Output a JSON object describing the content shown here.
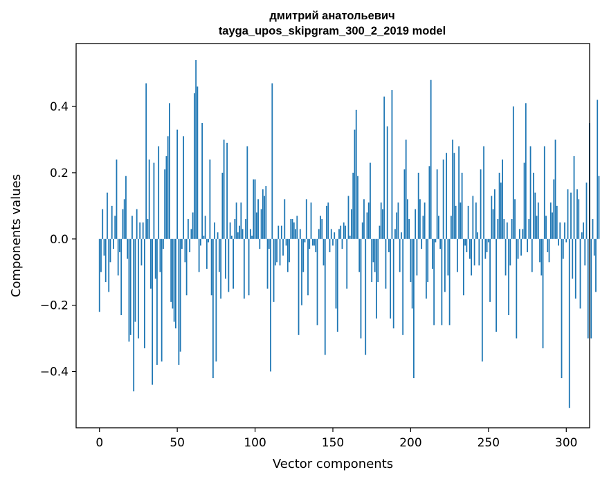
{
  "chart_data": {
    "type": "bar",
    "title": "дмитрий анатольевич\ntayga_upos_skipgram_300_2_2019 model",
    "title_lines": [
      "дмитрий анатольевич",
      "tayga_upos_skipgram_300_2_2019 model"
    ],
    "xlabel": "Vector components",
    "ylabel": "Components values",
    "xlim": [
      -15,
      315
    ],
    "ylim": [
      -0.57,
      0.59
    ],
    "xticks": [
      0,
      50,
      100,
      150,
      200,
      250,
      300
    ],
    "xtick_labels": [
      "0",
      "50",
      "100",
      "150",
      "200",
      "250",
      "300"
    ],
    "yticks": [
      -0.4,
      -0.2,
      0.0,
      0.2,
      0.4
    ],
    "ytick_labels": [
      "−0.4",
      "−0.2",
      "0.0",
      "0.2",
      "0.4"
    ],
    "bar_color": "#1f77b4",
    "series": [
      {
        "name": "components",
        "values": [
          -0.22,
          -0.1,
          0.09,
          -0.05,
          -0.13,
          0.14,
          -0.16,
          -0.07,
          0.1,
          -0.03,
          0.07,
          0.24,
          -0.11,
          -0.04,
          -0.23,
          0.09,
          0.12,
          0.19,
          -0.06,
          -0.31,
          -0.29,
          0.07,
          -0.46,
          -0.25,
          0.09,
          -0.3,
          0.05,
          -0.08,
          0.05,
          -0.33,
          0.47,
          0.06,
          0.24,
          -0.15,
          -0.44,
          0.23,
          -0.12,
          -0.38,
          0.28,
          -0.1,
          -0.37,
          -0.03,
          0.21,
          0.25,
          0.31,
          0.41,
          -0.19,
          -0.21,
          -0.25,
          -0.27,
          0.33,
          -0.38,
          -0.34,
          -0.03,
          0.31,
          -0.07,
          -0.17,
          0.06,
          -0.04,
          0.03,
          0.08,
          0.44,
          0.54,
          0.46,
          -0.1,
          -0.02,
          0.35,
          0.01,
          0.07,
          -0.09,
          -0.01,
          0.24,
          -0.17,
          -0.42,
          0.05,
          -0.37,
          0.02,
          -0.1,
          -0.18,
          0.2,
          0.3,
          -0.12,
          0.29,
          -0.16,
          0.05,
          0.01,
          -0.15,
          0.06,
          0.11,
          0.02,
          0.04,
          0.11,
          0.03,
          -0.18,
          0.06,
          0.28,
          -0.17,
          0.03,
          0.01,
          0.18,
          0.18,
          0.08,
          0.12,
          -0.03,
          0.09,
          0.15,
          0.13,
          0.16,
          -0.15,
          -0.03,
          -0.4,
          0.47,
          -0.19,
          -0.08,
          -0.07,
          0.04,
          -0.08,
          0.04,
          -0.05,
          0.12,
          -0.02,
          -0.1,
          -0.07,
          0.06,
          0.06,
          0.05,
          0.03,
          0.07,
          -0.29,
          0.03,
          -0.2,
          -0.1,
          -0.01,
          0.12,
          -0.17,
          -0.03,
          0.11,
          -0.02,
          -0.02,
          -0.04,
          -0.26,
          0.03,
          0.07,
          0.06,
          -0.08,
          -0.35,
          0.1,
          0.11,
          -0.04,
          0.03,
          -0.02,
          0.02,
          -0.21,
          -0.28,
          0.03,
          0.04,
          -0.03,
          0.05,
          0.04,
          -0.15,
          0.13,
          0.01,
          0.09,
          0.2,
          0.33,
          0.39,
          0.19,
          -0.1,
          -0.3,
          0.05,
          0.12,
          -0.35,
          0.08,
          0.11,
          0.23,
          -0.13,
          -0.07,
          -0.1,
          -0.24,
          -0.13,
          0.04,
          0.11,
          0.09,
          0.43,
          -0.15,
          0.34,
          -0.04,
          -0.24,
          0.45,
          -0.27,
          0.03,
          0.08,
          0.11,
          -0.1,
          0.02,
          -0.29,
          0.21,
          0.3,
          0.12,
          0.06,
          -0.13,
          -0.21,
          -0.42,
          0.09,
          -0.11,
          0.2,
          0.12,
          -0.03,
          0.07,
          0.11,
          -0.18,
          -0.13,
          0.22,
          0.48,
          -0.09,
          -0.26,
          -0.01,
          0.21,
          0.07,
          -0.03,
          -0.26,
          0.24,
          -0.16,
          0.26,
          -0.11,
          -0.26,
          0.07,
          0.3,
          0.26,
          0.1,
          -0.1,
          0.28,
          0.11,
          0.2,
          -0.17,
          -0.02,
          -0.04,
          0.1,
          -0.06,
          -0.11,
          0.13,
          -0.08,
          0.11,
          0.02,
          -0.08,
          0.21,
          -0.37,
          0.28,
          -0.06,
          -0.04,
          -0.01,
          -0.19,
          0.13,
          0.09,
          0.15,
          -0.28,
          0.06,
          0.2,
          0.17,
          0.24,
          0.06,
          -0.11,
          0.05,
          -0.23,
          -0.08,
          0.06,
          0.4,
          0.12,
          -0.3,
          -0.06,
          0.03,
          -0.05,
          0.03,
          0.23,
          0.41,
          -0.04,
          0.06,
          0.28,
          -0.1,
          0.2,
          0.14,
          0.07,
          0.11,
          -0.07,
          -0.11,
          -0.33,
          0.28,
          0.07,
          -0.04,
          -0.07,
          0.11,
          0.08,
          0.18,
          0.3,
          0.1,
          -0.02,
          0.05,
          -0.42,
          -0.06,
          0.05,
          -0.01,
          0.15,
          -0.51,
          0.14,
          -0.12,
          0.25,
          -0.18,
          0.15,
          0.12,
          -0.21,
          0.02,
          0.05,
          -0.08,
          0.17,
          -0.3,
          0.35,
          -0.3,
          0.06,
          -0.05,
          -0.16,
          0.42,
          0.19
        ]
      }
    ]
  }
}
